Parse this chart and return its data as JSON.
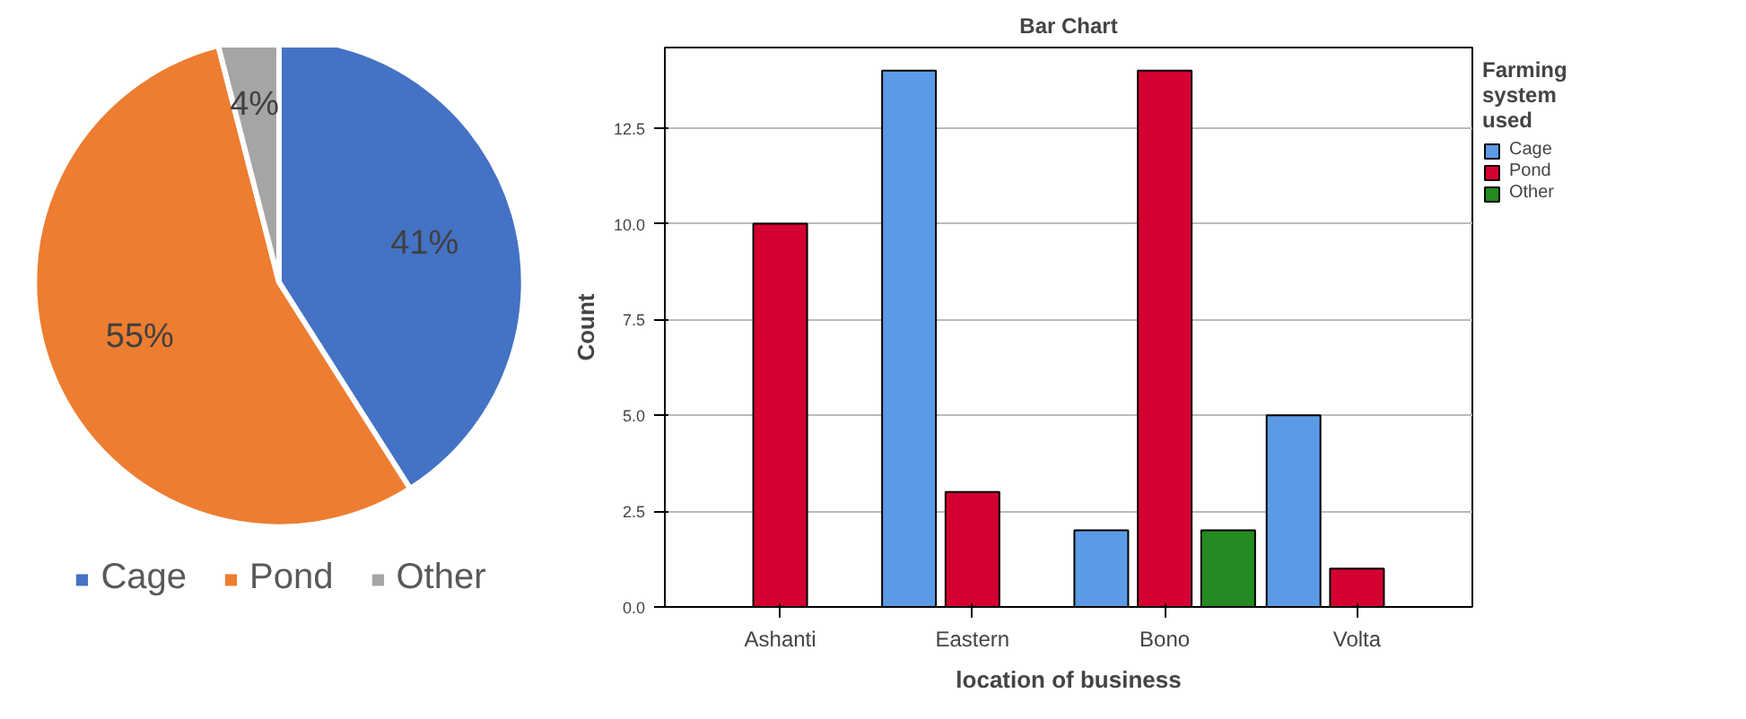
{
  "chart_data": [
    {
      "type": "pie",
      "categories": [
        "Cage",
        "Pond",
        "Other"
      ],
      "values": [
        41,
        55,
        4
      ],
      "colors": [
        "#4472c4",
        "#ed7d31",
        "#a5a5a5"
      ],
      "value_labels": [
        "41%",
        "55%",
        "4%"
      ],
      "legend": "bottom"
    },
    {
      "type": "bar",
      "title": "Bar Chart",
      "xlabel": "location of business",
      "ylabel": "Count",
      "legend_title": "Farming system used",
      "legend": "right",
      "grid": "y",
      "categories": [
        "Ashanti",
        "Eastern",
        "Bono",
        "Volta"
      ],
      "ylim": [
        0,
        14.6
      ],
      "yticks": [
        {
          "value": 0,
          "label": "0.0"
        },
        {
          "value": 2.5,
          "label": "2.5"
        },
        {
          "value": 5,
          "label": "5.0"
        },
        {
          "value": 7.5,
          "label": "7.5"
        },
        {
          "value": 10,
          "label": "10.0"
        },
        {
          "value": 12.5,
          "label": "12.5"
        }
      ],
      "series": [
        {
          "name": "Cage",
          "color": "#5b9be6",
          "values": [
            null,
            14,
            2,
            5
          ]
        },
        {
          "name": "Pond",
          "color": "#d50032",
          "values": [
            10,
            3,
            14,
            1
          ]
        },
        {
          "name": "Other",
          "color": "#238b21",
          "values": [
            null,
            null,
            2,
            null
          ]
        }
      ]
    }
  ]
}
